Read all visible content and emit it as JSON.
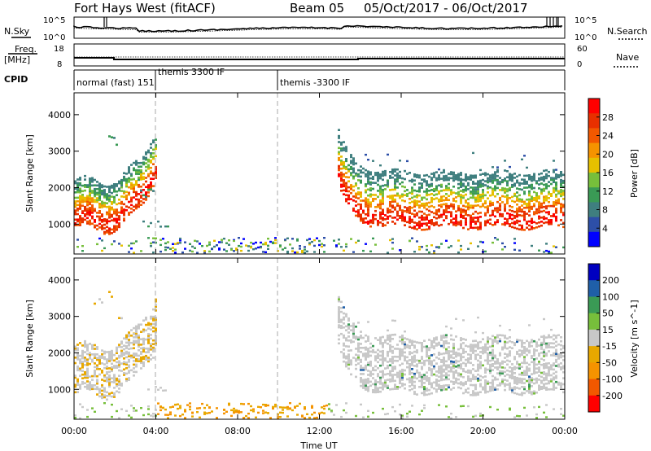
{
  "header": {
    "station": "Fort Hays West (fitACF)",
    "beam": "Beam 05",
    "date_range": "05/Oct/2017 - 06/Oct/2017"
  },
  "noise_panel": {
    "left_label": "N.Sky",
    "right_label": "N.Search",
    "left_ticks": [
      "10^5",
      "10^0"
    ],
    "right_ticks": [
      "10^5",
      "10^0"
    ]
  },
  "freq_panel": {
    "left_label_line1": "Freq.",
    "left_label_line2": "[MHz]",
    "right_label": "Nave",
    "left_ticks": [
      "18",
      "8"
    ],
    "right_ticks": [
      "60",
      "0"
    ]
  },
  "cpid_panel": {
    "label": "CPID",
    "modes": [
      {
        "label": "normal (fast) 151",
        "start_hour": 0.0
      },
      {
        "label": "themis 3300 IF",
        "start_hour": 4.0
      },
      {
        "label": "themis -3300 IF",
        "start_hour": 10.0
      }
    ]
  },
  "colors": {
    "power": [
      "#0000ff",
      "#2d4fa8",
      "#3f7f7f",
      "#3a9a55",
      "#77bf3b",
      "#e6c000",
      "#f59300",
      "#f25800",
      "#e83000",
      "#ff0000"
    ],
    "velocity": [
      "#ff0000",
      "#f25800",
      "#f59300",
      "#e8a800",
      "#c8c8c8",
      "#77bf3b",
      "#3a9a55",
      "#1f5fa8",
      "#0000c0"
    ]
  },
  "chart_data": [
    {
      "type": "heatmap",
      "quantity": "Power",
      "ylabel": "Slant Range [km]",
      "colorbar_label": "Power [dB]",
      "colorbar_ticks": [
        "4",
        "8",
        "12",
        "16",
        "20",
        "24",
        "28"
      ],
      "y_ticks": [
        "1000",
        "2000",
        "3000",
        "4000"
      ],
      "ylim": [
        180,
        4600
      ],
      "xlim_hours": [
        0,
        24
      ],
      "echo_bands": [
        {
          "name": "morning_main",
          "hours": [
            0.0,
            4.0
          ],
          "range_km": [
            950,
            2600
          ],
          "peak_db": 28
        },
        {
          "name": "morning_upper",
          "hours": [
            0.8,
            4.0
          ],
          "range_km": [
            2400,
            3550
          ],
          "peak_db": 10
        },
        {
          "name": "near_range",
          "hours": [
            0.0,
            24.0
          ],
          "range_km": [
            200,
            600
          ],
          "peak_db": 14
        },
        {
          "name": "evening_main",
          "hours": [
            12.8,
            24.0
          ],
          "range_km": [
            800,
            2800
          ],
          "peak_db": 30
        }
      ]
    },
    {
      "type": "heatmap",
      "quantity": "Velocity",
      "ylabel": "Slant Range [km]",
      "colorbar_label": "Velocity [m s^-1]",
      "colorbar_ticks": [
        "200",
        "100",
        "50",
        "15",
        "-15",
        "-50",
        "-100",
        "-200"
      ],
      "y_ticks": [
        "1000",
        "2000",
        "3000",
        "4000"
      ],
      "ylim": [
        180,
        4600
      ],
      "xlim_hours": [
        0,
        24
      ],
      "echo_bands": [
        {
          "name": "morning_main",
          "hours": [
            0.0,
            4.0
          ],
          "range_km": [
            950,
            2600
          ],
          "velocity": -20
        },
        {
          "name": "morning_upper",
          "hours": [
            0.8,
            4.0
          ],
          "range_km": [
            2400,
            3550
          ],
          "velocity": -50
        },
        {
          "name": "near_range",
          "hours": [
            4.0,
            12.0
          ],
          "range_km": [
            200,
            600
          ],
          "velocity": -60
        },
        {
          "name": "evening_main",
          "hours": [
            12.8,
            24.0
          ],
          "range_km": [
            800,
            2800
          ],
          "velocity": 0
        }
      ]
    }
  ],
  "x_axis": {
    "label": "Time UT",
    "ticks": [
      "00:00",
      "04:00",
      "08:00",
      "12:00",
      "16:00",
      "20:00",
      "00:00"
    ]
  }
}
